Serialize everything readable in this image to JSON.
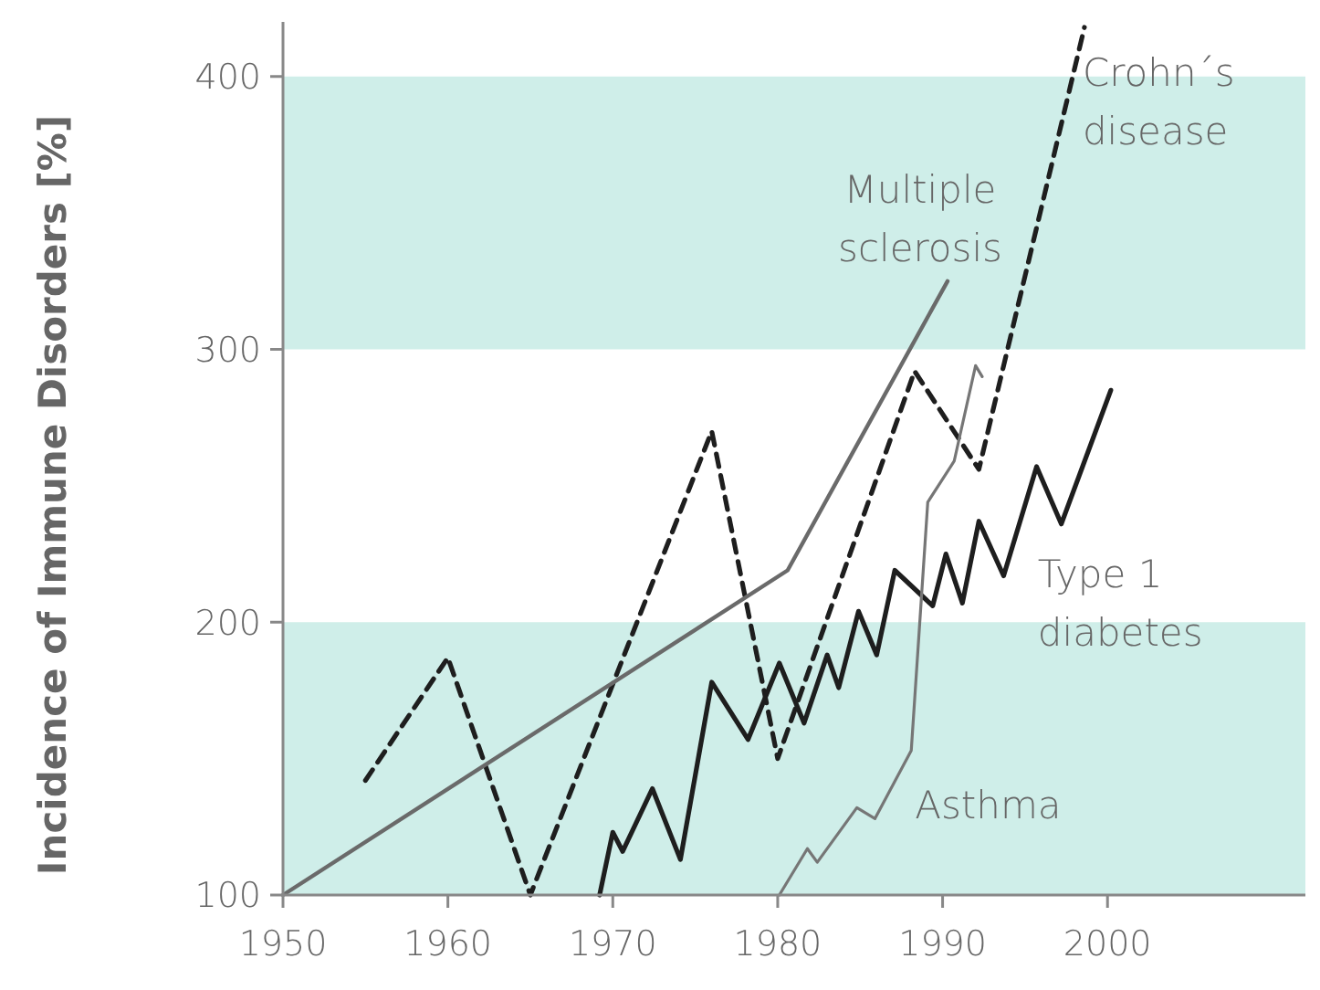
{
  "chart_data": {
    "type": "line",
    "ylabel": "Incidence of Immune Disorders [%]",
    "xlim": [
      1950,
      2012
    ],
    "ylim": [
      100,
      420
    ],
    "xticks": [
      1950,
      1960,
      1970,
      1980,
      1990,
      2000
    ],
    "yticks": [
      100,
      200,
      300,
      400
    ],
    "grid": false,
    "bands": [
      {
        "axis": "y",
        "from": 100,
        "to": 200,
        "color": "#cfeee9"
      },
      {
        "axis": "y",
        "from": 300,
        "to": 400,
        "color": "#cfeee9"
      }
    ],
    "series": [
      {
        "name": "Crohn´s disease",
        "color": "#1e1e1e",
        "line_style": "dashed",
        "x": [
          1955,
          1960,
          1965,
          1976,
          1980,
          1988.3,
          1992.2,
          1998.6
        ],
        "values": [
          142,
          187,
          100,
          270,
          150,
          292,
          256,
          418
        ]
      },
      {
        "name": "Multiple sclerosis",
        "color": "#6a6a6a",
        "line_style": "solid",
        "x": [
          1950,
          1980.6,
          1990.3
        ],
        "values": [
          100,
          219,
          325
        ]
      },
      {
        "name": "Type 1 diabetes",
        "color": "#1e1e1e",
        "line_style": "solid",
        "x": [
          1969.2,
          1970,
          1970.6,
          1972.4,
          1974.1,
          1976,
          1978.2,
          1980.1,
          1981.6,
          1983,
          1983.7,
          1984.9,
          1986,
          1987.1,
          1989.4,
          1990.2,
          1991.2,
          1992.2,
          1993.7,
          1995.7,
          1997.2,
          2000.2
        ],
        "values": [
          100,
          123,
          116,
          139,
          113,
          178,
          157,
          185,
          163,
          188,
          176,
          204,
          188,
          219,
          206,
          225,
          207,
          237,
          217,
          257,
          236,
          285
        ]
      },
      {
        "name": "Asthma",
        "color": "#767676",
        "line_style": "solid",
        "x": [
          1980.1,
          1981.8,
          1982.4,
          1984.8,
          1985.9,
          1988.1,
          1989.1,
          1990.7,
          1992,
          1992.4
        ],
        "values": [
          100,
          117,
          112,
          132,
          128,
          153,
          244,
          259,
          294,
          290
        ]
      }
    ]
  }
}
